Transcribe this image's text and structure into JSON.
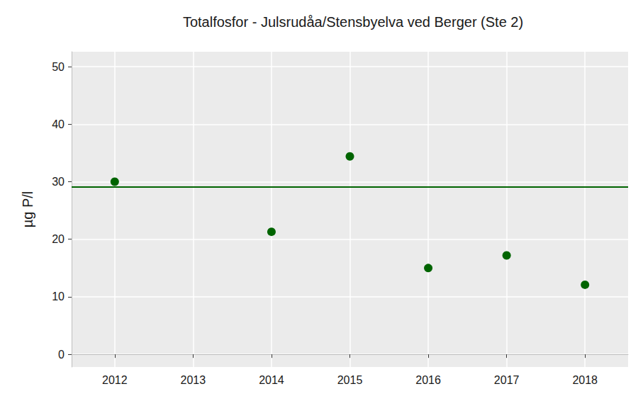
{
  "chart_data": {
    "type": "scatter",
    "title": "Totalfosfor - Julsrudåa/Stensbyelva ved Berger (Ste 2)",
    "y_label": "µg P/l",
    "x": [
      2012,
      2014,
      2015,
      2016,
      2017,
      2018
    ],
    "values": [
      30,
      21.3,
      34.4,
      15,
      17.2,
      12.1
    ],
    "color": "#006400",
    "marker": "circle",
    "reference_line": 29.1,
    "xlim": [
      2011.45,
      2018.55
    ],
    "xticks": [
      2012,
      2013,
      2014,
      2015,
      2016,
      2017,
      2018
    ],
    "ylim": [
      -2.2,
      52.6
    ],
    "yticks": [
      0,
      10,
      20,
      30,
      40,
      50
    ],
    "grid": true
  }
}
